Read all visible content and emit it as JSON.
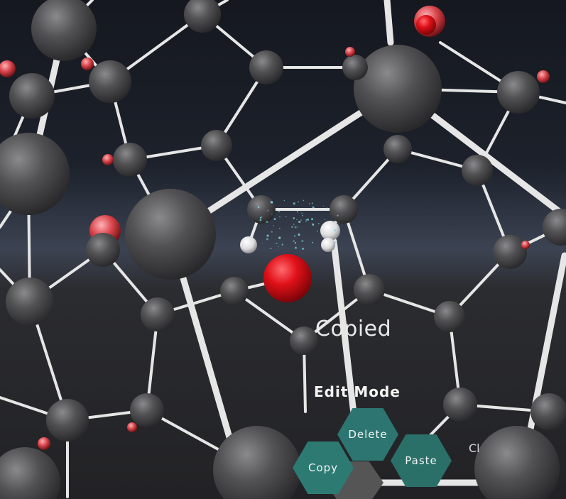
{
  "scene": {
    "status_text": "Copied",
    "menu_title": "Edit Mode",
    "clipped_text": "Cl"
  },
  "radial_menu": {
    "buttons": [
      {
        "id": "delete",
        "label": "Delete"
      },
      {
        "id": "paste",
        "label": "Paste"
      },
      {
        "id": "copy",
        "label": "Copy"
      }
    ]
  },
  "colors": {
    "background_top": "#14171f",
    "background_horizon": "#3a4150",
    "floor": "#2a2b2e",
    "atom_gray": "#4a4a4c",
    "atom_red": "#e8101a",
    "bond_white": "#e8e8e8",
    "menu_teal": "#2e7a74"
  }
}
